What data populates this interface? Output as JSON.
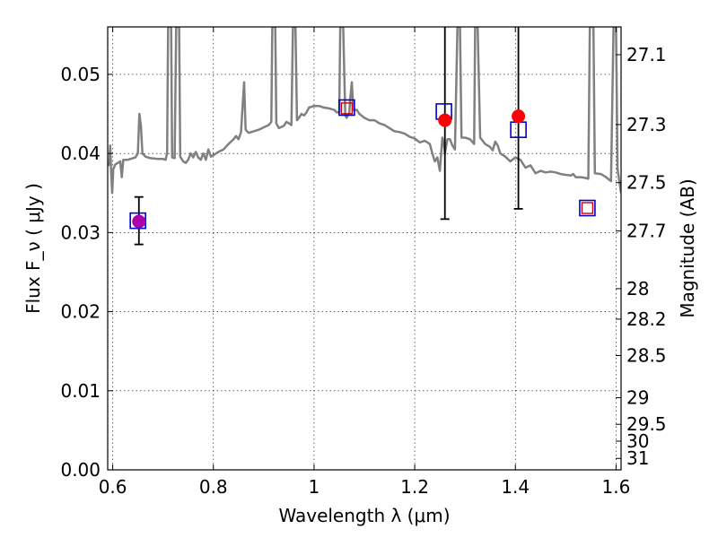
{
  "chart_data": {
    "type": "scatter",
    "xlabel": "Wavelength  λ (μm)",
    "ylabel": "Flux  F_ν  ( μJy )",
    "y2label": "Magnitude (AB)",
    "xlim": [
      0.59,
      1.61
    ],
    "ylim": [
      0.0,
      0.056
    ],
    "grid": true,
    "x_ticks": [
      {
        "value": 0.6,
        "label": "0.6"
      },
      {
        "value": 0.8,
        "label": "0.8"
      },
      {
        "value": 1.0,
        "label": "1"
      },
      {
        "value": 1.2,
        "label": "1.2"
      },
      {
        "value": 1.4,
        "label": "1.4"
      },
      {
        "value": 1.6,
        "label": "1.6"
      }
    ],
    "y_ticks": [
      {
        "value": 0.0,
        "label": "0.00"
      },
      {
        "value": 0.01,
        "label": "0.01"
      },
      {
        "value": 0.02,
        "label": "0.02"
      },
      {
        "value": 0.03,
        "label": "0.03"
      },
      {
        "value": 0.04,
        "label": "0.04"
      },
      {
        "value": 0.05,
        "label": "0.05"
      }
    ],
    "mag_ticks": [
      {
        "mag": 27.1,
        "label": "27.1"
      },
      {
        "mag": 27.3,
        "label": "27.3"
      },
      {
        "mag": 27.5,
        "label": "27.5"
      },
      {
        "mag": 27.7,
        "label": "27.7"
      },
      {
        "mag": 28.0,
        "label": "28"
      },
      {
        "mag": 28.2,
        "label": "28.2"
      },
      {
        "mag": 28.5,
        "label": "28.5"
      },
      {
        "mag": 29.0,
        "label": "29"
      },
      {
        "mag": 29.5,
        "label": "29.5"
      },
      {
        "mag": 30.0,
        "label": "30"
      },
      {
        "mag": 31.0,
        "label": "31"
      }
    ],
    "model_spectrum": {
      "color": "#808080",
      "points": [
        [
          0.59,
          0.0385
        ],
        [
          0.593,
          0.0386
        ],
        [
          0.595,
          0.041
        ],
        [
          0.597,
          0.0375
        ],
        [
          0.599,
          0.035
        ],
        [
          0.601,
          0.038
        ],
        [
          0.605,
          0.0386
        ],
        [
          0.61,
          0.0388
        ],
        [
          0.615,
          0.039
        ],
        [
          0.618,
          0.037
        ],
        [
          0.621,
          0.0392
        ],
        [
          0.63,
          0.0392
        ],
        [
          0.64,
          0.0394
        ],
        [
          0.645,
          0.0395
        ],
        [
          0.65,
          0.04
        ],
        [
          0.653,
          0.045
        ],
        [
          0.656,
          0.0435
        ],
        [
          0.659,
          0.04
        ],
        [
          0.665,
          0.0396
        ],
        [
          0.675,
          0.0394
        ],
        [
          0.69,
          0.0393
        ],
        [
          0.7,
          0.0393
        ],
        [
          0.705,
          0.0392
        ],
        [
          0.708,
          0.04
        ],
        [
          0.71,
          0.056
        ],
        [
          0.716,
          0.056
        ],
        [
          0.718,
          0.0395
        ],
        [
          0.723,
          0.0394
        ],
        [
          0.726,
          0.056
        ],
        [
          0.732,
          0.056
        ],
        [
          0.734,
          0.0396
        ],
        [
          0.74,
          0.039
        ],
        [
          0.745,
          0.0388
        ],
        [
          0.75,
          0.0392
        ],
        [
          0.755,
          0.04
        ],
        [
          0.76,
          0.0395
        ],
        [
          0.765,
          0.0402
        ],
        [
          0.77,
          0.0395
        ],
        [
          0.775,
          0.0392
        ],
        [
          0.78,
          0.04
        ],
        [
          0.785,
          0.0392
        ],
        [
          0.79,
          0.0405
        ],
        [
          0.795,
          0.0396
        ],
        [
          0.8,
          0.0398
        ],
        [
          0.81,
          0.0402
        ],
        [
          0.82,
          0.0405
        ],
        [
          0.83,
          0.0412
        ],
        [
          0.84,
          0.0418
        ],
        [
          0.845,
          0.0422
        ],
        [
          0.85,
          0.0418
        ],
        [
          0.855,
          0.0427
        ],
        [
          0.858,
          0.046
        ],
        [
          0.861,
          0.049
        ],
        [
          0.864,
          0.043
        ],
        [
          0.87,
          0.0426
        ],
        [
          0.88,
          0.0428
        ],
        [
          0.89,
          0.043
        ],
        [
          0.9,
          0.0433
        ],
        [
          0.91,
          0.0436
        ],
        [
          0.915,
          0.044
        ],
        [
          0.917,
          0.056
        ],
        [
          0.923,
          0.056
        ],
        [
          0.925,
          0.0438
        ],
        [
          0.93,
          0.0432
        ],
        [
          0.94,
          0.0435
        ],
        [
          0.945,
          0.044
        ],
        [
          0.95,
          0.0438
        ],
        [
          0.955,
          0.0436
        ],
        [
          0.958,
          0.056
        ],
        [
          0.963,
          0.056
        ],
        [
          0.966,
          0.0442
        ],
        [
          0.97,
          0.0445
        ],
        [
          0.975,
          0.045
        ],
        [
          0.98,
          0.0448
        ],
        [
          0.985,
          0.0452
        ],
        [
          0.99,
          0.0458
        ],
        [
          1.0,
          0.046
        ],
        [
          1.01,
          0.046
        ],
        [
          1.02,
          0.0458
        ],
        [
          1.03,
          0.0457
        ],
        [
          1.04,
          0.0455
        ],
        [
          1.045,
          0.0452
        ],
        [
          1.05,
          0.0452
        ],
        [
          1.052,
          0.056
        ],
        [
          1.058,
          0.056
        ],
        [
          1.062,
          0.0448
        ],
        [
          1.065,
          0.0445
        ],
        [
          1.07,
          0.0452
        ],
        [
          1.072,
          0.047
        ],
        [
          1.075,
          0.049
        ],
        [
          1.078,
          0.0455
        ],
        [
          1.085,
          0.0455
        ],
        [
          1.09,
          0.045
        ],
        [
          1.1,
          0.0445
        ],
        [
          1.11,
          0.0442
        ],
        [
          1.12,
          0.0442
        ],
        [
          1.13,
          0.0438
        ],
        [
          1.14,
          0.0436
        ],
        [
          1.15,
          0.0432
        ],
        [
          1.16,
          0.0428
        ],
        [
          1.17,
          0.0427
        ],
        [
          1.18,
          0.0425
        ],
        [
          1.19,
          0.0421
        ],
        [
          1.2,
          0.0419
        ],
        [
          1.21,
          0.0414
        ],
        [
          1.22,
          0.0416
        ],
        [
          1.23,
          0.0412
        ],
        [
          1.235,
          0.04
        ],
        [
          1.24,
          0.039
        ],
        [
          1.245,
          0.0395
        ],
        [
          1.25,
          0.0378
        ],
        [
          1.255,
          0.042
        ],
        [
          1.258,
          0.0412
        ],
        [
          1.26,
          0.04
        ],
        [
          1.265,
          0.0418
        ],
        [
          1.27,
          0.0418
        ],
        [
          1.275,
          0.041
        ],
        [
          1.28,
          0.0405
        ],
        [
          1.285,
          0.056
        ],
        [
          1.29,
          0.056
        ],
        [
          1.293,
          0.042
        ],
        [
          1.3,
          0.042
        ],
        [
          1.31,
          0.0418
        ],
        [
          1.318,
          0.0412
        ],
        [
          1.32,
          0.056
        ],
        [
          1.325,
          0.056
        ],
        [
          1.33,
          0.042
        ],
        [
          1.34,
          0.0412
        ],
        [
          1.35,
          0.0408
        ],
        [
          1.355,
          0.0404
        ],
        [
          1.36,
          0.0415
        ],
        [
          1.365,
          0.041
        ],
        [
          1.37,
          0.04
        ],
        [
          1.38,
          0.0396
        ],
        [
          1.39,
          0.039
        ],
        [
          1.4,
          0.0395
        ],
        [
          1.41,
          0.0392
        ],
        [
          1.42,
          0.0382
        ],
        [
          1.43,
          0.0385
        ],
        [
          1.44,
          0.0375
        ],
        [
          1.45,
          0.0378
        ],
        [
          1.46,
          0.0376
        ],
        [
          1.47,
          0.0377
        ],
        [
          1.48,
          0.0376
        ],
        [
          1.49,
          0.0374
        ],
        [
          1.5,
          0.0373
        ],
        [
          1.51,
          0.0372
        ],
        [
          1.515,
          0.0374
        ],
        [
          1.52,
          0.037
        ],
        [
          1.53,
          0.037
        ],
        [
          1.54,
          0.0369
        ],
        [
          1.545,
          0.0368
        ],
        [
          1.548,
          0.056
        ],
        [
          1.555,
          0.056
        ],
        [
          1.558,
          0.0375
        ],
        [
          1.57,
          0.0374
        ],
        [
          1.58,
          0.037
        ],
        [
          1.59,
          0.0365
        ],
        [
          1.595,
          0.056
        ],
        [
          1.6,
          0.056
        ],
        [
          1.603,
          0.038
        ],
        [
          1.61,
          0.035
        ]
      ]
    },
    "series": [
      {
        "marker": "square-open",
        "color": "#0000cc",
        "points": [
          {
            "x": 0.65,
            "y": 0.0315
          },
          {
            "x": 1.065,
            "y": 0.0458
          },
          {
            "x": 1.258,
            "y": 0.0453
          },
          {
            "x": 1.406,
            "y": 0.043
          },
          {
            "x": 1.543,
            "y": 0.0331
          }
        ]
      },
      {
        "marker": "square-open-small",
        "color": "#cc0000",
        "points": [
          {
            "x": 1.065,
            "y": 0.0457
          },
          {
            "x": 1.543,
            "y": 0.0331
          }
        ]
      },
      {
        "marker": "circle-filled",
        "color": "#ff0000",
        "points": [
          {
            "x": 1.26,
            "y": 0.0442,
            "yerr_low": 0.0317,
            "yerr_high": 0.059
          },
          {
            "x": 1.406,
            "y": 0.0447,
            "yerr_low": 0.033,
            "yerr_high": 0.059
          }
        ]
      },
      {
        "marker": "circle-filled",
        "color": "#aa00aa",
        "points": [
          {
            "x": 0.652,
            "y": 0.0314,
            "yerr_low": 0.0285,
            "yerr_high": 0.0345
          }
        ]
      }
    ]
  }
}
